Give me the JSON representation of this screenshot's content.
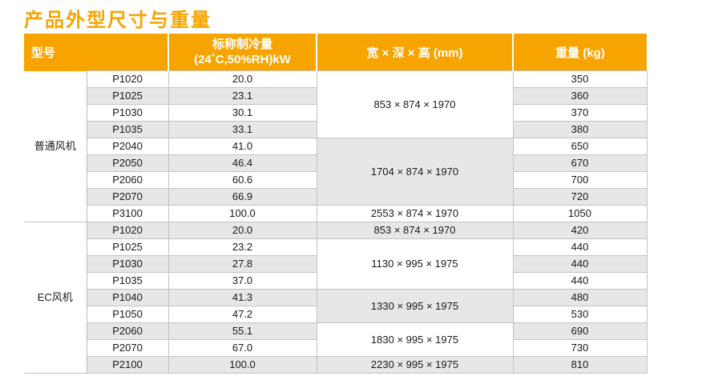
{
  "page": {
    "title": "产品外型尺寸与重量"
  },
  "colors": {
    "accent_orange": "#F7A400",
    "header_text": "#FFFFFF",
    "row_alt_gray": "#E7E7E7",
    "row_white": "#FFFFFF",
    "border_gray": "#C3C3C3",
    "body_text": "#1A1A1A"
  },
  "table": {
    "headers": {
      "model": "型号",
      "capacity_line1": "标称制冷量",
      "capacity_line2": "(24˚C,50%RH)kW",
      "dimensions": "宽 × 深 × 高 (mm)",
      "weight": "重量 (kg)"
    },
    "rows": [
      {
        "group": "普通风机",
        "group_rows": 9,
        "model": "P1020",
        "capacity": "20.0",
        "dim": "853 × 874 × 1970",
        "dim_rows": 4,
        "weight": "350"
      },
      {
        "model": "P1025",
        "capacity": "23.1",
        "weight": "360"
      },
      {
        "model": "P1030",
        "capacity": "30.1",
        "weight": "370"
      },
      {
        "model": "P1035",
        "capacity": "33.1",
        "weight": "380"
      },
      {
        "model": "P2040",
        "capacity": "41.0",
        "dim": "1704 × 874 × 1970",
        "dim_rows": 4,
        "weight": "650"
      },
      {
        "model": "P2050",
        "capacity": "46.4",
        "weight": "670"
      },
      {
        "model": "P2060",
        "capacity": "60.6",
        "weight": "700"
      },
      {
        "model": "P2070",
        "capacity": "66.9",
        "weight": "720"
      },
      {
        "model": "P3100",
        "capacity": "100.0",
        "dim": "2553 × 874 × 1970",
        "dim_rows": 1,
        "weight": "1050"
      },
      {
        "group": "EC风机",
        "group_rows": 9,
        "model": "P1020",
        "capacity": "20.0",
        "dim": "853 × 874 × 1970",
        "dim_rows": 1,
        "weight": "420"
      },
      {
        "model": "P1025",
        "capacity": "23.2",
        "dim": "1130 × 995 × 1975",
        "dim_rows": 3,
        "weight": "440"
      },
      {
        "model": "P1030",
        "capacity": "27.8",
        "weight": "440"
      },
      {
        "model": "P1035",
        "capacity": "37.0",
        "weight": "440"
      },
      {
        "model": "P1040",
        "capacity": "41.3",
        "dim": "1330 × 995 × 1975",
        "dim_rows": 2,
        "weight": "480"
      },
      {
        "model": "P1050",
        "capacity": "47.2",
        "weight": "530"
      },
      {
        "model": "P2060",
        "capacity": "55.1",
        "dim": "1830 × 995 × 1975",
        "dim_rows": 2,
        "weight": "690"
      },
      {
        "model": "P2070",
        "capacity": "67.0",
        "weight": "730"
      },
      {
        "model": "P2100",
        "capacity": "100.0",
        "dim": "2230 × 995 × 1975",
        "dim_rows": 1,
        "weight": "810"
      }
    ]
  }
}
